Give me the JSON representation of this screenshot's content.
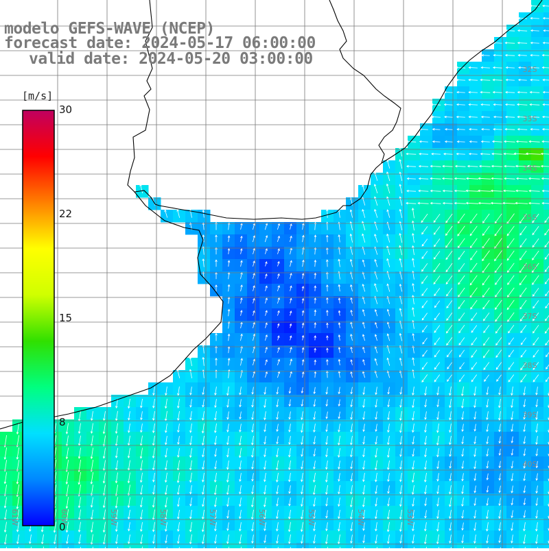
{
  "title": {
    "model": "modelo GEFS-WAVE (NCEP)",
    "forecast": "forecast date: 2024-05-17 06:00:00",
    "valid": "valid date: 2024-05-20 03:00:00"
  },
  "colorbar": {
    "units": "[m/s]",
    "ticks": [
      "30",
      "22",
      "15",
      "8",
      "0"
    ],
    "tick_values": [
      30,
      22,
      15,
      8,
      0
    ],
    "range": [
      0,
      30
    ],
    "colors": [
      "#0000ff",
      "#0088ff",
      "#00e0ff",
      "#00ff80",
      "#30e000",
      "#d0ff00",
      "#ffff00",
      "#ff8000",
      "#ff0000",
      "#c00060"
    ]
  },
  "map": {
    "variable": "wind speed",
    "latitude_labels": [
      "32S",
      "33S",
      "34S",
      "35S",
      "36S",
      "37S",
      "38S",
      "39S",
      "40S"
    ],
    "longitude_labels": [
      "61W",
      "60W",
      "59W",
      "58W",
      "57W",
      "56W",
      "55W",
      "54W",
      "53W"
    ],
    "longitude_range": [
      -62,
      -52
    ],
    "latitude_range": [
      -41,
      -31
    ],
    "grid": true,
    "land_color": "#ffffff",
    "vector_color": "#ffffff"
  }
}
